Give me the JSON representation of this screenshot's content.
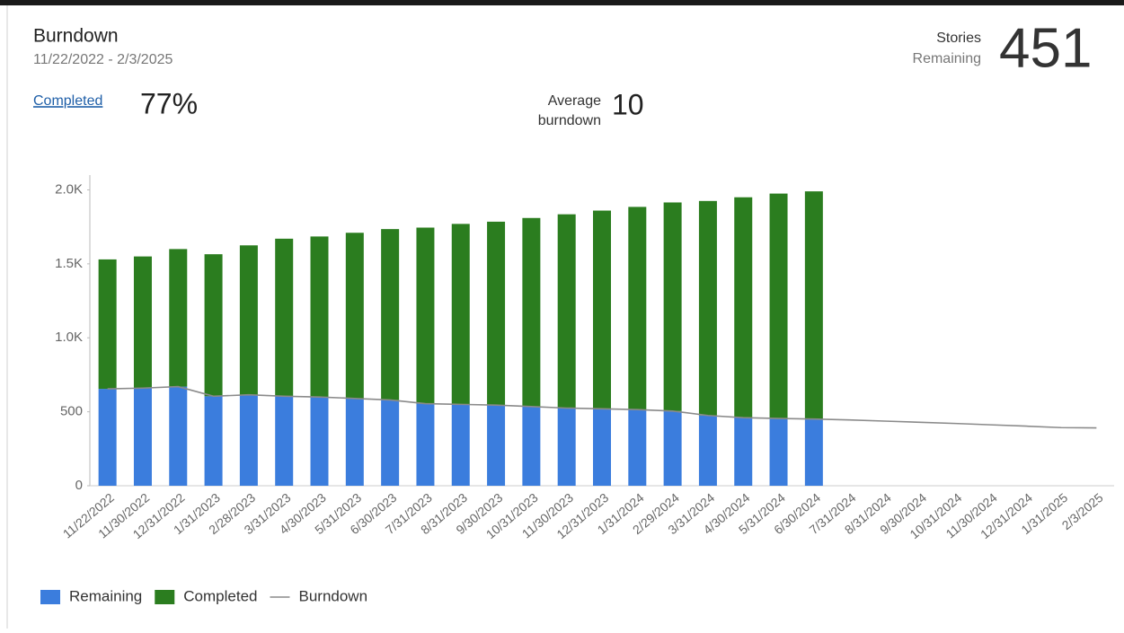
{
  "header": {
    "title": "Burndown",
    "date_range": "11/22/2022 - 2/3/2025",
    "stories_label_1": "Stories",
    "stories_label_2": "Remaining",
    "stories_value": "451",
    "completed_label": "Completed",
    "completed_value": "77%",
    "average_label_1": "Average",
    "average_label_2": "burndown",
    "average_value": "10"
  },
  "chart_data": {
    "type": "bar",
    "stacked": true,
    "categories": [
      "11/22/2022",
      "11/30/2022",
      "12/31/2022",
      "1/31/2023",
      "2/28/2023",
      "3/31/2023",
      "4/30/2023",
      "5/31/2023",
      "6/30/2023",
      "7/31/2023",
      "8/31/2023",
      "9/30/2023",
      "10/31/2023",
      "11/30/2023",
      "12/31/2023",
      "1/31/2024",
      "2/29/2024",
      "3/31/2024",
      "4/30/2024",
      "5/31/2024",
      "6/30/2024",
      "7/31/2024",
      "8/31/2024",
      "9/30/2024",
      "10/31/2024",
      "11/30/2024",
      "12/31/2024",
      "1/31/2025",
      "2/3/2025"
    ],
    "series": [
      {
        "name": "Remaining",
        "color": "#3b7ddd",
        "values": [
          655,
          660,
          670,
          605,
          615,
          605,
          600,
          590,
          580,
          555,
          550,
          545,
          535,
          525,
          520,
          515,
          505,
          475,
          460,
          455,
          451,
          null,
          null,
          null,
          null,
          null,
          null,
          null,
          null
        ]
      },
      {
        "name": "Completed",
        "color": "#2b7d1f",
        "values": [
          875,
          890,
          930,
          960,
          1010,
          1065,
          1085,
          1120,
          1155,
          1190,
          1220,
          1240,
          1275,
          1310,
          1340,
          1370,
          1410,
          1450,
          1490,
          1520,
          1539,
          null,
          null,
          null,
          null,
          null,
          null,
          null,
          null
        ]
      },
      {
        "name": "Burndown",
        "type": "line",
        "color": "#8a8a8a",
        "values": [
          655,
          660,
          670,
          605,
          615,
          605,
          600,
          590,
          580,
          555,
          550,
          545,
          535,
          525,
          520,
          515,
          505,
          475,
          460,
          455,
          451,
          445,
          437,
          429,
          421,
          412,
          403,
          393,
          391
        ]
      }
    ],
    "ylim": [
      0,
      2100
    ],
    "yticks": [
      0,
      500,
      {
        "value": 1000,
        "label": "1.0K"
      },
      {
        "value": 1500,
        "label": "1.5K"
      },
      {
        "value": 2000,
        "label": "2.0K"
      }
    ],
    "legend": "bottom-left"
  }
}
